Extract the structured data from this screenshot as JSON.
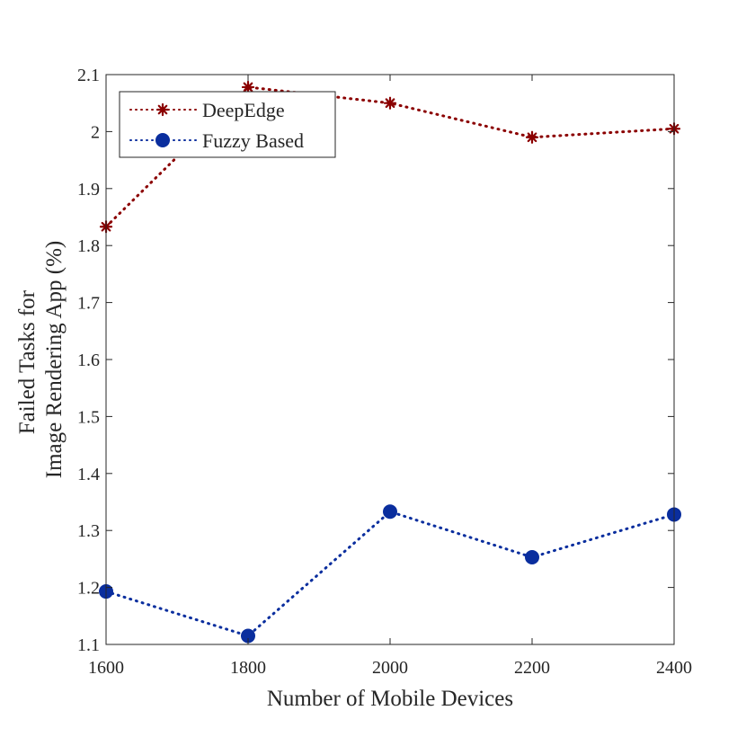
{
  "chart_data": {
    "type": "line",
    "title": "",
    "xlabel": "Number of Mobile Devices",
    "ylabel": [
      "Failed Tasks for",
      "Image Rendering App (%)"
    ],
    "x": [
      1600,
      1800,
      2000,
      2200,
      2400
    ],
    "xlim": [
      1600,
      2400
    ],
    "ylim": [
      1.1,
      2.1
    ],
    "xticks": [
      1600,
      1800,
      2000,
      2200,
      2400
    ],
    "xtick_labels": [
      "1600",
      "1800",
      "2000",
      "2200",
      "2400"
    ],
    "yticks": [
      1.1,
      1.2,
      1.3,
      1.4,
      1.5,
      1.6,
      1.7,
      1.8,
      1.9,
      2.0,
      2.1
    ],
    "ytick_labels": [
      "1.1",
      "1.2",
      "1.3",
      "1.4",
      "1.5",
      "1.6",
      "1.7",
      "1.8",
      "1.9",
      "2",
      "2.1"
    ],
    "grid": false,
    "legend_position": "top-left",
    "series": [
      {
        "name": "DeepEdge",
        "values": [
          1.833,
          2.078,
          2.05,
          1.99,
          2.005
        ],
        "color": "#8B0000",
        "marker": "asterisk",
        "line_style": "dotted"
      },
      {
        "name": "Fuzzy Based",
        "values": [
          1.193,
          1.115,
          1.333,
          1.253,
          1.328
        ],
        "color": "#0A2E9E",
        "marker": "circle",
        "line_style": "dotted"
      }
    ]
  }
}
